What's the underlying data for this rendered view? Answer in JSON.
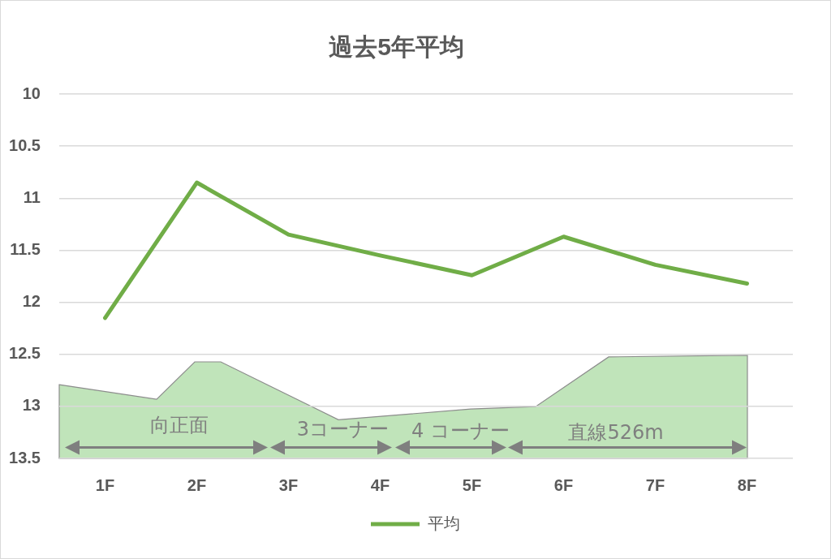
{
  "chart_data": {
    "type": "line",
    "title": "過去5年平均",
    "categories": [
      "1F",
      "2F",
      "3F",
      "4F",
      "5F",
      "6F",
      "7F",
      "8F"
    ],
    "series": [
      {
        "name": "平均",
        "color": "#70ad47",
        "values": [
          12.15,
          10.85,
          11.35,
          11.55,
          11.74,
          11.37,
          11.64,
          11.82
        ]
      }
    ],
    "ylim": [
      13.5,
      10
    ],
    "yticks": [
      10,
      10.5,
      11,
      11.5,
      12,
      12.5,
      13,
      13.5
    ],
    "grid": "y",
    "legend": "bottom",
    "marker": "none",
    "line_style": "solid",
    "annotations": [
      "向正面",
      "3コーナー",
      "4 コーナー",
      "直線526m"
    ]
  }
}
